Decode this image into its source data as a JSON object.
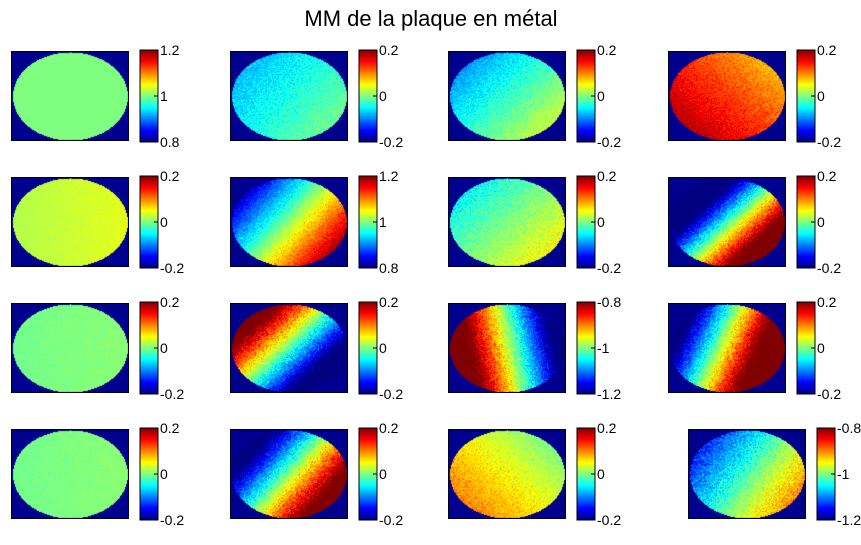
{
  "chart_data": {
    "type": "heatmap",
    "title": "MM de la plaque en métal",
    "colormap": "jet",
    "grid": "off",
    "layout": {
      "rows": 4,
      "cols": 4
    },
    "colors": {
      "background": "#00008f",
      "frame": "#000000"
    },
    "subplots": [
      {
        "name": "m11",
        "clim": [
          0.8,
          1.2
        ],
        "ticks": [
          0.8,
          1,
          1.2
        ],
        "tick_labels": [
          "0.8",
          "1",
          "1.2"
        ],
        "mean": 1.0,
        "gradient": 0.0,
        "angle": 0,
        "noise": 0.003
      },
      {
        "name": "m12",
        "clim": [
          -0.2,
          0.2
        ],
        "ticks": [
          -0.2,
          0,
          0.2
        ],
        "tick_labels": [
          "-0.2",
          "0",
          "0.2"
        ],
        "mean": -0.04,
        "gradient": 0.035,
        "angle": 35,
        "noise": 0.02
      },
      {
        "name": "m13",
        "clim": [
          -0.2,
          0.2
        ],
        "ticks": [
          -0.2,
          0,
          0.2
        ],
        "tick_labels": [
          "-0.2",
          "0",
          "0.2"
        ],
        "mean": -0.03,
        "gradient": 0.06,
        "angle": 40,
        "noise": 0.02
      },
      {
        "name": "m14",
        "clim": [
          -0.2,
          0.2
        ],
        "ticks": [
          -0.2,
          0,
          0.2
        ],
        "tick_labels": [
          "-0.2",
          "0",
          "0.2"
        ],
        "mean": 0.13,
        "gradient": 0.05,
        "angle": 140,
        "noise": 0.02
      },
      {
        "name": "m21",
        "clim": [
          -0.2,
          0.2
        ],
        "ticks": [
          -0.2,
          0,
          0.2
        ],
        "tick_labels": [
          "-0.2",
          "0",
          "0.2"
        ],
        "mean": 0.03,
        "gradient": 0.01,
        "angle": 0,
        "noise": 0.008
      },
      {
        "name": "m22",
        "clim": [
          0.8,
          1.2
        ],
        "ticks": [
          0.8,
          1,
          1.2
        ],
        "tick_labels": [
          "0.8",
          "1",
          "1.2"
        ],
        "mean": 1.01,
        "gradient": 0.18,
        "angle": 35,
        "noise": 0.02
      },
      {
        "name": "m23",
        "clim": [
          -0.2,
          0.2
        ],
        "ticks": [
          -0.2,
          0,
          0.2
        ],
        "tick_labels": [
          "-0.2",
          "0",
          "0.2"
        ],
        "mean": 0.0,
        "gradient": 0.05,
        "angle": 40,
        "noise": 0.025
      },
      {
        "name": "m24",
        "clim": [
          -0.2,
          0.2
        ],
        "ticks": [
          -0.2,
          0,
          0.2
        ],
        "tick_labels": [
          "-0.2",
          "0",
          "0.2"
        ],
        "mean": -0.02,
        "gradient": 0.36,
        "angle": 40,
        "noise": 0.03
      },
      {
        "name": "m31",
        "clim": [
          -0.2,
          0.2
        ],
        "ticks": [
          -0.2,
          0,
          0.2
        ],
        "tick_labels": [
          "-0.2",
          "0",
          "0.2"
        ],
        "mean": 0.0,
        "gradient": 0.005,
        "angle": 0,
        "noise": 0.008
      },
      {
        "name": "m32",
        "clim": [
          -0.2,
          0.2
        ],
        "ticks": [
          -0.2,
          0,
          0.2
        ],
        "tick_labels": [
          "-0.2",
          "0",
          "0.2"
        ],
        "mean": -0.02,
        "gradient": 0.3,
        "angle": 220,
        "noise": 0.03
      },
      {
        "name": "m33",
        "clim": [
          -1.2,
          -0.8
        ],
        "ticks": [
          -1.2,
          -1,
          -0.8
        ],
        "tick_labels": [
          "-1.2",
          "-1",
          "-0.8"
        ],
        "mean": -0.97,
        "gradient": 0.3,
        "angle": 170,
        "noise": 0.03
      },
      {
        "name": "m34",
        "clim": [
          -0.2,
          0.2
        ],
        "ticks": [
          -0.2,
          0,
          0.2
        ],
        "tick_labels": [
          "-0.2",
          "0",
          "0.2"
        ],
        "mean": 0.06,
        "gradient": 0.32,
        "angle": 20,
        "noise": 0.03
      },
      {
        "name": "m41",
        "clim": [
          -0.2,
          0.2
        ],
        "ticks": [
          -0.2,
          0,
          0.2
        ],
        "tick_labels": [
          "-0.2",
          "0",
          "0.2"
        ],
        "mean": 0.0,
        "gradient": 0.005,
        "angle": 0,
        "noise": 0.008
      },
      {
        "name": "m42",
        "clim": [
          -0.2,
          0.2
        ],
        "ticks": [
          -0.2,
          0,
          0.2
        ],
        "tick_labels": [
          "-0.2",
          "0",
          "0.2"
        ],
        "mean": 0.01,
        "gradient": 0.28,
        "angle": 35,
        "noise": 0.03
      },
      {
        "name": "m43",
        "clim": [
          -0.2,
          0.2
        ],
        "ticks": [
          -0.2,
          0,
          0.2
        ],
        "tick_labels": [
          "-0.2",
          "0",
          "0.2"
        ],
        "mean": 0.05,
        "gradient": 0.05,
        "angle": 140,
        "noise": 0.02
      },
      {
        "name": "m44",
        "clim": [
          -1.2,
          -0.8
        ],
        "ticks": [
          -1.2,
          -1,
          -0.8
        ],
        "tick_labels": [
          "-1.2",
          "-1",
          "-0.8"
        ],
        "mean": -1.02,
        "gradient": 0.12,
        "angle": 30,
        "noise": 0.03
      }
    ]
  }
}
